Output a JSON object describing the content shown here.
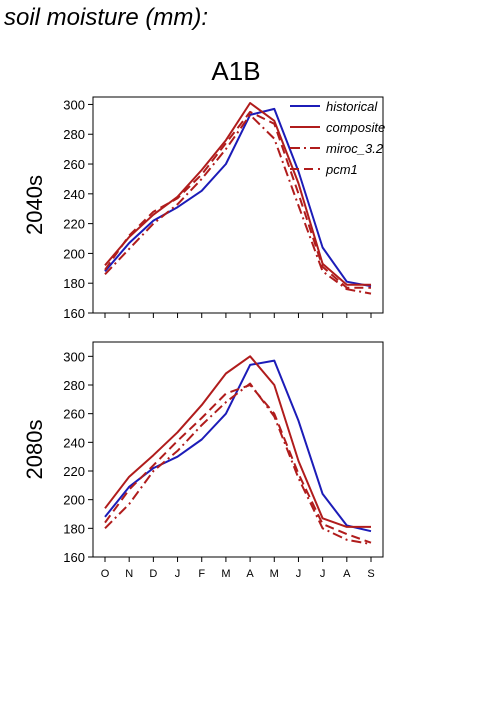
{
  "header": {
    "title": "soil moisture (mm):",
    "scenario": "A1B"
  },
  "colors": {
    "historical": "#1c1cb8",
    "model": "#b01c1c"
  },
  "chart_data": [
    {
      "type": "line",
      "ylabel": "2040s",
      "ylim": [
        160,
        305
      ],
      "yticks": [
        160,
        180,
        200,
        220,
        240,
        260,
        280,
        300
      ],
      "categories": [
        "O",
        "N",
        "D",
        "J",
        "F",
        "M",
        "A",
        "M",
        "J",
        "J",
        "A",
        "S"
      ],
      "show_xticklabels": false,
      "legend": "top-right",
      "series": [
        {
          "name": "historical",
          "color": "#1c1cb8",
          "dash": "solid",
          "values": [
            188,
            207,
            222,
            231,
            242,
            260,
            293,
            297,
            255,
            204,
            181,
            178
          ]
        },
        {
          "name": "composite",
          "color": "#b01c1c",
          "dash": "solid",
          "values": [
            192,
            211,
            226,
            238,
            256,
            276,
            301,
            289,
            247,
            193,
            179,
            179
          ]
        },
        {
          "name": "miroc_3.2",
          "color": "#b01c1c",
          "dash": "dashdot",
          "values": [
            186,
            203,
            220,
            233,
            250,
            270,
            293,
            277,
            232,
            188,
            176,
            173
          ]
        },
        {
          "name": "pcm1",
          "color": "#b01c1c",
          "dash": "dash",
          "values": [
            189,
            212,
            228,
            237,
            253,
            274,
            295,
            287,
            240,
            191,
            177,
            177
          ]
        }
      ]
    },
    {
      "type": "line",
      "ylabel": "2080s",
      "ylim": [
        160,
        310
      ],
      "yticks": [
        160,
        180,
        200,
        220,
        240,
        260,
        280,
        300
      ],
      "categories": [
        "O",
        "N",
        "D",
        "J",
        "F",
        "M",
        "A",
        "M",
        "J",
        "J",
        "A",
        "S"
      ],
      "show_xticklabels": true,
      "legend": "none",
      "series": [
        {
          "name": "historical",
          "color": "#1c1cb8",
          "dash": "solid",
          "values": [
            188,
            209,
            222,
            230,
            242,
            260,
            294,
            297,
            255,
            204,
            182,
            178
          ]
        },
        {
          "name": "composite",
          "color": "#b01c1c",
          "dash": "solid",
          "values": [
            194,
            216,
            231,
            247,
            266,
            288,
            300,
            280,
            227,
            187,
            181,
            181
          ]
        },
        {
          "name": "miroc_3.2",
          "color": "#b01c1c",
          "dash": "dashdot",
          "values": [
            180,
            197,
            220,
            234,
            252,
            268,
            281,
            258,
            215,
            180,
            172,
            169
          ]
        },
        {
          "name": "pcm1",
          "color": "#b01c1c",
          "dash": "dash",
          "values": [
            184,
            207,
            224,
            241,
            257,
            274,
            280,
            260,
            218,
            183,
            176,
            170
          ]
        }
      ]
    }
  ]
}
